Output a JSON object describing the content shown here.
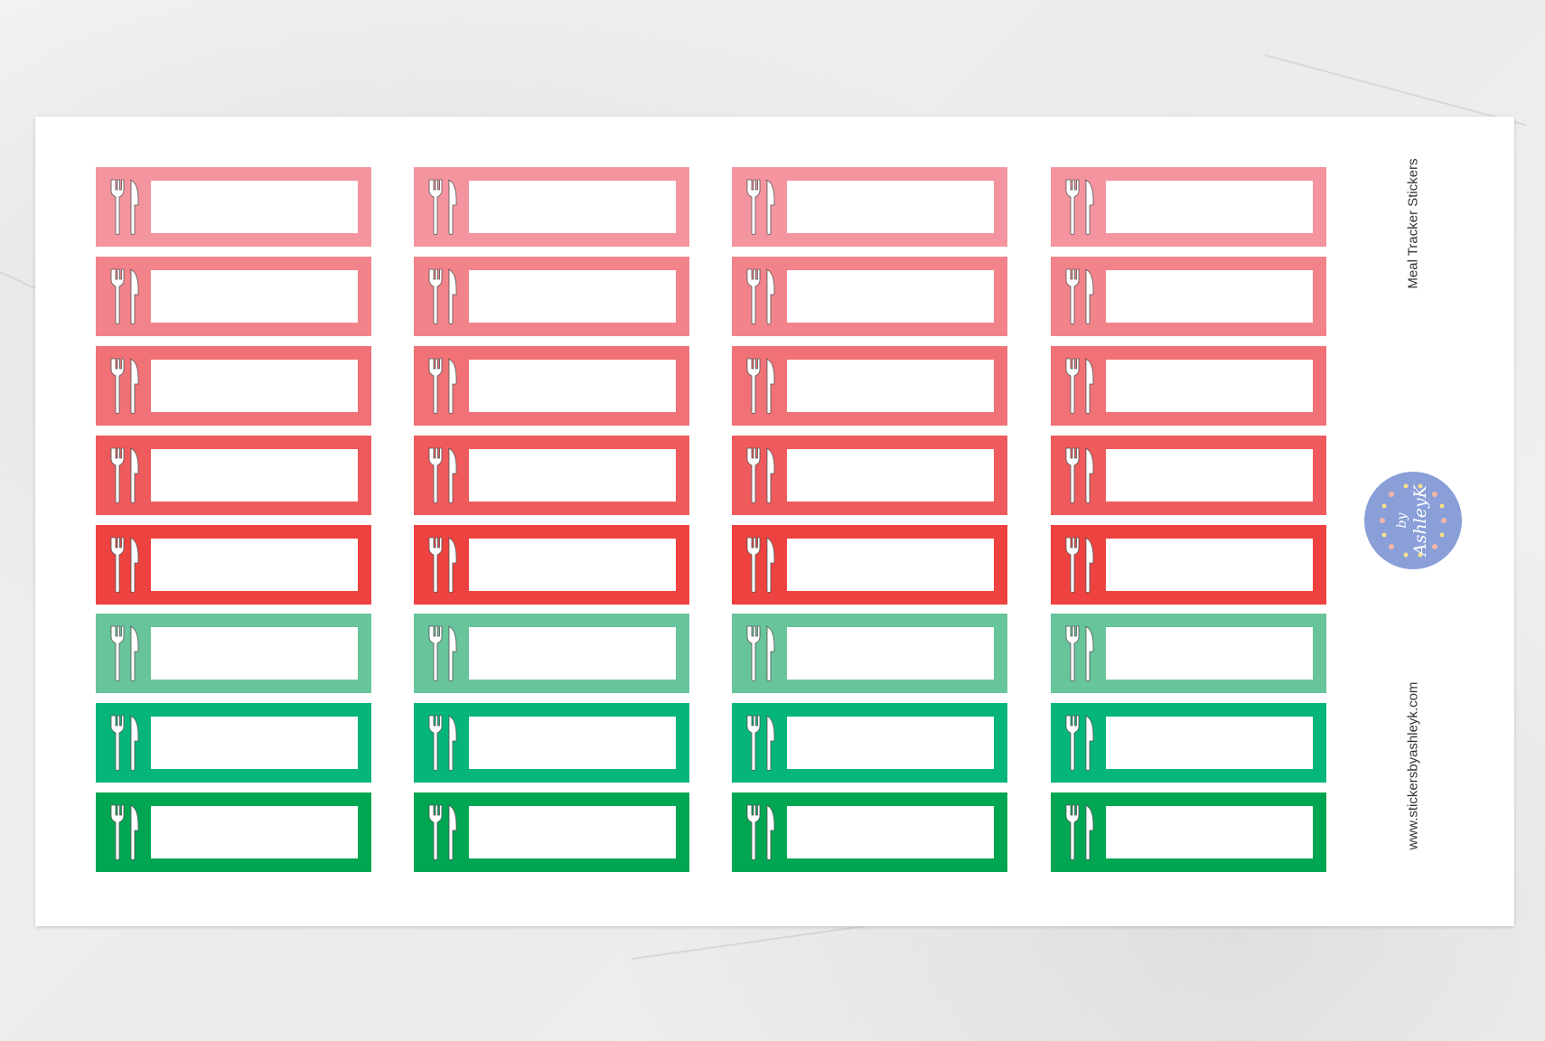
{
  "sheet": {
    "title": "Meal Tracker Stickers",
    "website": "www.stickersbyashleyk.com",
    "logo_text": "by AshleyK",
    "logo_color": "#8a9fd8"
  },
  "grid": {
    "columns": 4,
    "sticker_icon": "fork-knife-icon",
    "row_colors": [
      "#f4949f",
      "#f2838a",
      "#f07176",
      "#ef5a5c",
      "#ee4240",
      "#67c49b",
      "#05b57b",
      "#00a652"
    ]
  }
}
